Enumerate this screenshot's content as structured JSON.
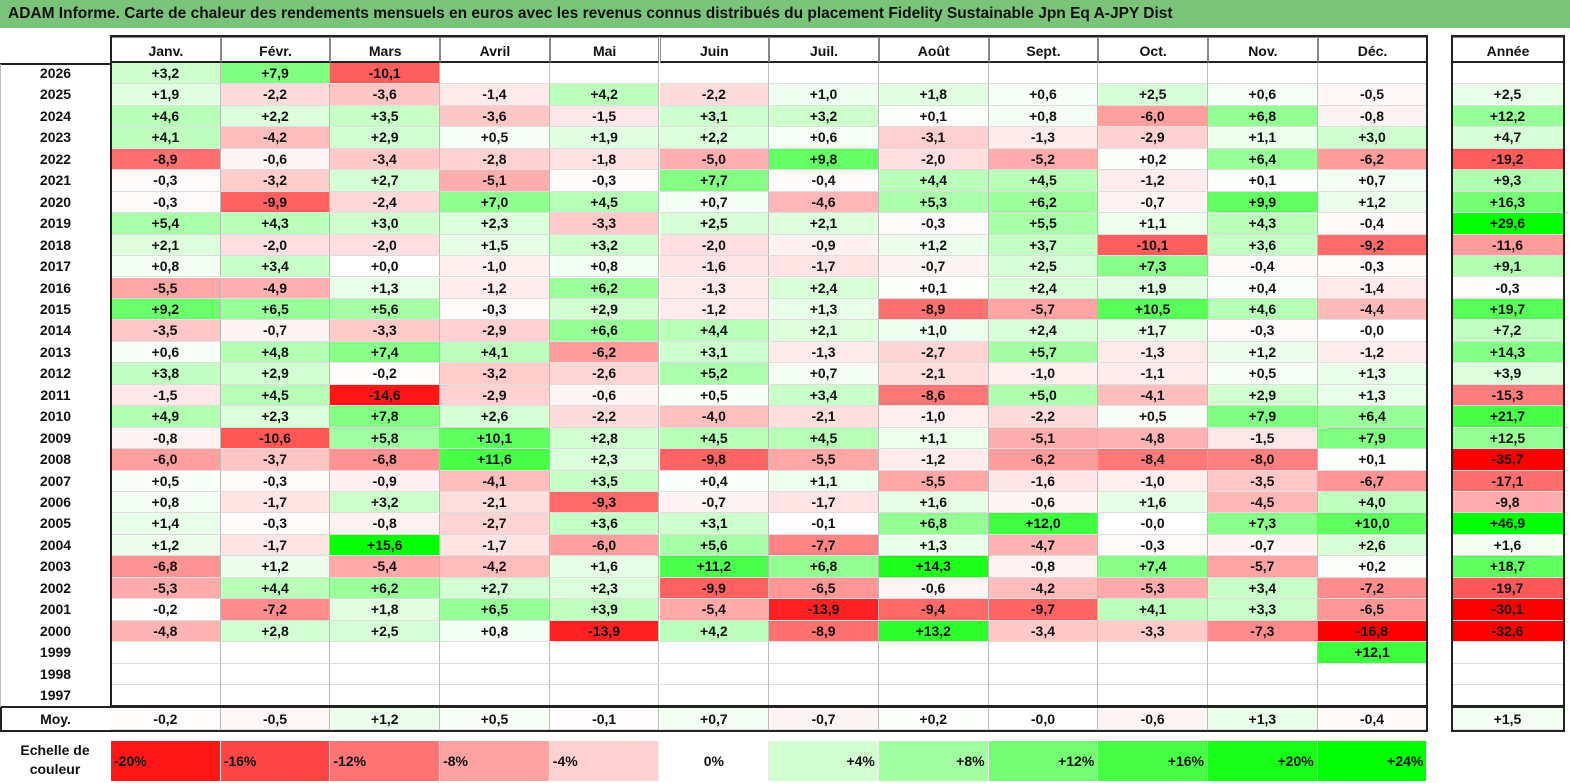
{
  "title": "ADAM Informe. Carte de chaleur des rendements mensuels en euros avec les revenus connus distribués du placement Fidelity Sustainable Jpn Eq A-JPY Dist",
  "chart_data": {
    "type": "heatmap",
    "title": "ADAM Informe. Carte de chaleur des rendements mensuels en euros avec les revenus connus distribués du placement Fidelity Sustainable Jpn Eq A-JPY Dist",
    "months": [
      "Janv.",
      "Févr.",
      "Mars",
      "Avril",
      "Mai",
      "Juin",
      "Juil.",
      "Août",
      "Sept.",
      "Oct.",
      "Nov.",
      "Déc."
    ],
    "year_header": "Année",
    "rows": [
      {
        "year": "2026",
        "values": [
          "+3,2",
          "+7,9",
          "-10,1",
          "",
          "",
          "",
          "",
          "",
          "",
          "",
          "",
          ""
        ],
        "annual": ""
      },
      {
        "year": "2025",
        "values": [
          "+1,9",
          "-2,2",
          "-3,6",
          "-1,4",
          "+4,2",
          "-2,2",
          "+1,0",
          "+1,8",
          "+0,6",
          "+2,5",
          "+0,6",
          "-0,5"
        ],
        "annual": "+2,5"
      },
      {
        "year": "2024",
        "values": [
          "+4,6",
          "+2,2",
          "+3,5",
          "-3,6",
          "-1,5",
          "+3,1",
          "+3,2",
          "+0,1",
          "+0,8",
          "-6,0",
          "+6,8",
          "-0,8"
        ],
        "annual": "+12,2"
      },
      {
        "year": "2023",
        "values": [
          "+4,1",
          "-4,2",
          "+2,9",
          "+0,5",
          "+1,9",
          "+2,2",
          "+0,6",
          "-3,1",
          "-1,3",
          "-2,9",
          "+1,1",
          "+3,0"
        ],
        "annual": "+4,7"
      },
      {
        "year": "2022",
        "values": [
          "-8,9",
          "-0,6",
          "-3,4",
          "-2,8",
          "-1,8",
          "-5,0",
          "+9,8",
          "-2,0",
          "-5,2",
          "+0,2",
          "+6,4",
          "-6,2"
        ],
        "annual": "-19,2"
      },
      {
        "year": "2021",
        "values": [
          "-0,3",
          "-3,2",
          "+2,7",
          "-5,1",
          "-0,3",
          "+7,7",
          "-0,4",
          "+4,4",
          "+4,5",
          "-1,2",
          "+0,1",
          "+0,7"
        ],
        "annual": "+9,3"
      },
      {
        "year": "2020",
        "values": [
          "-0,3",
          "-9,9",
          "-2,4",
          "+7,0",
          "+4,5",
          "+0,7",
          "-4,6",
          "+5,3",
          "+6,2",
          "-0,7",
          "+9,9",
          "+1,2"
        ],
        "annual": "+16,3"
      },
      {
        "year": "2019",
        "values": [
          "+5,4",
          "+4,3",
          "+3,0",
          "+2,3",
          "-3,3",
          "+2,5",
          "+2,1",
          "-0,3",
          "+5,5",
          "+1,1",
          "+4,3",
          "-0,4"
        ],
        "annual": "+29,6"
      },
      {
        "year": "2018",
        "values": [
          "+2,1",
          "-2,0",
          "-2,0",
          "+1,5",
          "+3,2",
          "-2,0",
          "-0,9",
          "+1,2",
          "+3,7",
          "-10,1",
          "+3,6",
          "-9,2"
        ],
        "annual": "-11,6"
      },
      {
        "year": "2017",
        "values": [
          "+0,8",
          "+3,4",
          "+0,0",
          "-1,0",
          "+0,8",
          "-1,6",
          "-1,7",
          "-0,7",
          "+2,5",
          "+7,3",
          "-0,4",
          "-0,3"
        ],
        "annual": "+9,1"
      },
      {
        "year": "2016",
        "values": [
          "-5,5",
          "-4,9",
          "+1,3",
          "-1,2",
          "+6,2",
          "-1,3",
          "+2,4",
          "+0,1",
          "+2,4",
          "+1,9",
          "+0,4",
          "-1,4"
        ],
        "annual": "-0,3"
      },
      {
        "year": "2015",
        "values": [
          "+9,2",
          "+6,5",
          "+5,6",
          "-0,3",
          "+2,9",
          "-1,2",
          "+1,3",
          "-8,9",
          "-5,7",
          "+10,5",
          "+4,6",
          "-4,4"
        ],
        "annual": "+19,7"
      },
      {
        "year": "2014",
        "values": [
          "-3,5",
          "-0,7",
          "-3,3",
          "-2,9",
          "+6,6",
          "+4,4",
          "+2,1",
          "+1,0",
          "+2,4",
          "+1,7",
          "-0,3",
          "-0,0"
        ],
        "annual": "+7,2"
      },
      {
        "year": "2013",
        "values": [
          "+0,6",
          "+4,8",
          "+7,4",
          "+4,1",
          "-6,2",
          "+3,1",
          "-1,3",
          "-2,7",
          "+5,7",
          "-1,3",
          "+1,2",
          "-1,2"
        ],
        "annual": "+14,3"
      },
      {
        "year": "2012",
        "values": [
          "+3,8",
          "+2,9",
          "-0,2",
          "-3,2",
          "-2,6",
          "+5,2",
          "+0,7",
          "-2,1",
          "-1,0",
          "-1,1",
          "+0,5",
          "+1,3"
        ],
        "annual": "+3,9"
      },
      {
        "year": "2011",
        "values": [
          "-1,5",
          "+4,5",
          "-14,6",
          "-2,9",
          "-0,6",
          "+0,5",
          "+3,4",
          "-8,6",
          "+5,0",
          "-4,1",
          "+2,9",
          "+1,3"
        ],
        "annual": "-15,3"
      },
      {
        "year": "2010",
        "values": [
          "+4,9",
          "+2,3",
          "+7,8",
          "+2,6",
          "-2,2",
          "-4,0",
          "-2,1",
          "-1,0",
          "-2,2",
          "+0,5",
          "+7,9",
          "+6,4"
        ],
        "annual": "+21,7"
      },
      {
        "year": "2009",
        "values": [
          "-0,8",
          "-10,6",
          "+5,8",
          "+10,1",
          "+2,8",
          "+4,5",
          "+4,5",
          "+1,1",
          "-5,1",
          "-4,8",
          "-1,5",
          "+7,9"
        ],
        "annual": "+12,5"
      },
      {
        "year": "2008",
        "values": [
          "-6,0",
          "-3,7",
          "-6,8",
          "+11,6",
          "+2,3",
          "-9,8",
          "-5,5",
          "-1,2",
          "-6,2",
          "-8,4",
          "-8,0",
          "+0,1"
        ],
        "annual": "-35,7"
      },
      {
        "year": "2007",
        "values": [
          "+0,5",
          "-0,3",
          "-0,9",
          "-4,1",
          "+3,5",
          "+0,4",
          "+1,1",
          "-5,5",
          "-1,6",
          "-1,0",
          "-3,5",
          "-6,7"
        ],
        "annual": "-17,1"
      },
      {
        "year": "2006",
        "values": [
          "+0,8",
          "-1,7",
          "+3,2",
          "-2,1",
          "-9,3",
          "-0,7",
          "-1,7",
          "+1,6",
          "-0,6",
          "+1,6",
          "-4,5",
          "+4,0"
        ],
        "annual": "-9,8"
      },
      {
        "year": "2005",
        "values": [
          "+1,4",
          "-0,3",
          "-0,8",
          "-2,7",
          "+3,6",
          "+3,1",
          "-0,1",
          "+6,8",
          "+12,0",
          "-0,0",
          "+7,3",
          "+10,0"
        ],
        "annual": "+46,9"
      },
      {
        "year": "2004",
        "values": [
          "+1,2",
          "-1,7",
          "+15,6",
          "-1,7",
          "-6,0",
          "+5,6",
          "-7,7",
          "+1,3",
          "-4,7",
          "-0,3",
          "-0,7",
          "+2,6"
        ],
        "annual": "+1,6"
      },
      {
        "year": "2003",
        "values": [
          "-6,8",
          "+1,2",
          "-5,4",
          "-4,2",
          "+1,6",
          "+11,2",
          "+6,8",
          "+14,3",
          "-0,8",
          "+7,4",
          "-5,7",
          "+0,2"
        ],
        "annual": "+18,7"
      },
      {
        "year": "2002",
        "values": [
          "-5,3",
          "+4,4",
          "+6,2",
          "+2,7",
          "+2,3",
          "-9,9",
          "-6,5",
          "-0,6",
          "-4,2",
          "-5,3",
          "+3,4",
          "-7,2"
        ],
        "annual": "-19,7"
      },
      {
        "year": "2001",
        "values": [
          "-0,2",
          "-7,2",
          "+1,8",
          "+6,5",
          "+3,9",
          "-5,4",
          "-13,9",
          "-9,4",
          "-9,7",
          "+4,1",
          "+3,3",
          "-6,5"
        ],
        "annual": "-30,1"
      },
      {
        "year": "2000",
        "values": [
          "-4,8",
          "+2,8",
          "+2,5",
          "+0,8",
          "-13,9",
          "+4,2",
          "-8,9",
          "+13,2",
          "-3,4",
          "-3,3",
          "-7,3",
          "-16,8"
        ],
        "annual": "-32,6"
      },
      {
        "year": "1999",
        "values": [
          "",
          "",
          "",
          "",
          "",
          "",
          "",
          "",
          "",
          "",
          "",
          "+12,1"
        ],
        "annual": ""
      },
      {
        "year": "1998",
        "values": [
          "",
          "",
          "",
          "",
          "",
          "",
          "",
          "",
          "",
          "",
          "",
          ""
        ],
        "annual": ""
      },
      {
        "year": "1997",
        "values": [
          "",
          "",
          "",
          "",
          "",
          "",
          "",
          "",
          "",
          "",
          "",
          ""
        ],
        "annual": ""
      }
    ],
    "average": {
      "label": "Moy.",
      "values": [
        "-0,2",
        "-0,5",
        "+1,2",
        "+0,5",
        "-0,1",
        "+0,7",
        "-0,7",
        "+0,2",
        "-0,0",
        "-0,6",
        "+1,3",
        "-0,4"
      ],
      "annual": "+1,5"
    },
    "legend": {
      "label": "Echelle de couleur",
      "labels": [
        "-20%",
        "-16%",
        "-12%",
        "-8%",
        "-4%",
        "0%",
        "+4%",
        "+8%",
        "+12%",
        "+16%",
        "+20%",
        "+24%"
      ],
      "levels": [
        -20,
        -16,
        -12,
        -8,
        -4,
        0,
        4,
        8,
        12,
        16,
        20,
        24
      ]
    },
    "colors": {
      "negative": "#ff0000",
      "positive": "#00ff00",
      "neutral": "#ffffff"
    }
  }
}
